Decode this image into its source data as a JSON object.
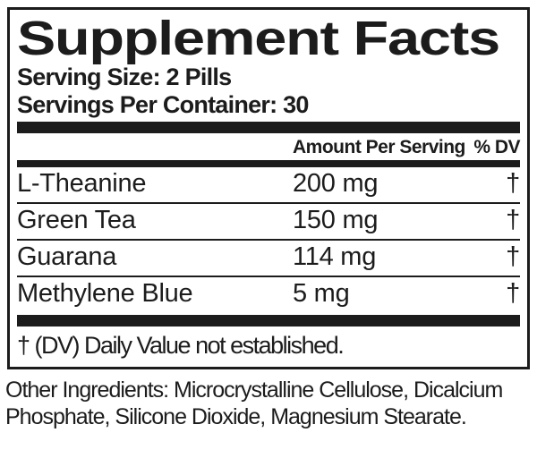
{
  "label": {
    "title": "Supplement Facts",
    "serving_size": "Serving Size: 2 Pills",
    "servings_per_container": "Servings Per Container: 30",
    "columns": {
      "amount": "Amount Per Serving",
      "dv": "% DV"
    },
    "rows": [
      {
        "name": "L-Theanine",
        "amount": "200 mg",
        "dv": "†"
      },
      {
        "name": "Green Tea",
        "amount": "150 mg",
        "dv": "†"
      },
      {
        "name": "Guarana",
        "amount": "114 mg",
        "dv": "†"
      },
      {
        "name": "Methylene Blue",
        "amount": "5 mg",
        "dv": "†"
      }
    ],
    "footnote": "† (DV) Daily Value not established.",
    "other_ingredients_lines": [
      "Other Ingredients: Microcrystalline Cellulose, Dicalcium",
      "Phosphate, Silicone Dioxide, Magnesium Stearate."
    ],
    "colors": {
      "ink": "#1c1c1c",
      "background": "#ffffff"
    }
  }
}
